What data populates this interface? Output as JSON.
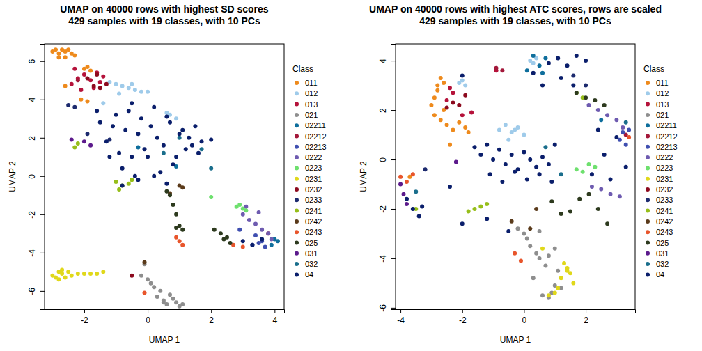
{
  "chart_data": [
    {
      "type": "scatter",
      "title": "UMAP on 40000 rows with highest SD scores",
      "subtitle": "429 samples with 19 classes, with 10 PCs",
      "x_label": "UMAP 1",
      "y_label": "UMAP 2",
      "legend_title": "Class",
      "legend": "right",
      "xlim": [
        -3.25,
        4.3
      ],
      "ylim": [
        -6.95,
        6.9
      ],
      "xticks": [
        -2,
        0,
        2,
        4
      ],
      "yticks": [
        -6,
        -4,
        -2,
        0,
        2,
        4,
        6
      ],
      "series": [
        {
          "name": "011",
          "color": "#EE8A1C",
          "x": [
            -3.0,
            -2.9,
            -2.8,
            -2.7,
            -2.6,
            -2.5,
            -2.4,
            -2.3,
            -2.8,
            -2.6,
            -2.0,
            -1.9,
            -1.8,
            -2.1,
            -1.9,
            -2.6
          ],
          "y": [
            6.5,
            6.6,
            6.4,
            6.6,
            6.5,
            6.6,
            6.4,
            6.3,
            6.2,
            6.2,
            5.6,
            5.7,
            5.5,
            4.0,
            3.9,
            4.7
          ]
        },
        {
          "name": "012",
          "color": "#9FCBEA",
          "x": [
            -1.2,
            -1.0,
            -0.8,
            -0.6,
            -0.4,
            -0.2,
            0.0,
            -0.5,
            -0.9,
            0.6,
            0.7,
            0.9,
            -1.4
          ],
          "y": [
            4.9,
            4.8,
            4.7,
            4.6,
            4.5,
            4.4,
            4.4,
            4.8,
            4.3,
            3.3,
            3.2,
            3.0,
            3.8
          ]
        },
        {
          "name": "013",
          "color": "#B5123A",
          "x": [
            -2.4,
            -2.2,
            -2.0,
            -1.8,
            -1.6,
            -1.4,
            -2.1,
            -1.7,
            -2.3,
            -1.5
          ],
          "y": [
            4.8,
            5.1,
            5.3,
            5.0,
            5.4,
            5.2,
            4.5,
            4.6,
            5.6,
            4.9
          ]
        },
        {
          "name": "021",
          "color": "#8E8E8E",
          "x": [
            -0.2,
            0.0,
            0.2,
            0.3,
            0.5,
            0.6,
            0.8,
            0.9,
            1.0,
            0.4,
            0.1,
            0.7,
            1.1,
            -0.1,
            0.5
          ],
          "y": [
            -5.2,
            -5.4,
            -5.8,
            -6.3,
            -6.5,
            -6.7,
            -6.4,
            -6.6,
            -6.8,
            -6.0,
            -5.6,
            -6.2,
            -6.7,
            -4.6,
            -6.6
          ]
        },
        {
          "name": "02211",
          "color": "#0E6E9C",
          "x": [
            4.0,
            4.1,
            3.9,
            0.9,
            -0.3
          ],
          "y": [
            -3.3,
            -3.4,
            -3.6,
            0.5,
            1.5
          ]
        },
        {
          "name": "02212",
          "color": "#A3183A",
          "x": [
            -2.2,
            3.8
          ],
          "y": [
            5.0,
            -3.0
          ]
        },
        {
          "name": "02213",
          "color": "#3F4FB0",
          "x": [
            3.3,
            3.5,
            3.6,
            3.7,
            3.4,
            2.9
          ],
          "y": [
            -3.6,
            -3.5,
            -3.4,
            -3.7,
            -3.1,
            -2.8
          ]
        },
        {
          "name": "0222",
          "color": "#6E5BB0",
          "x": [
            3.0,
            3.2,
            3.4,
            3.6,
            3.8,
            3.9,
            3.1,
            3.5
          ],
          "y": [
            -2.0,
            -2.3,
            -2.5,
            -2.8,
            -3.0,
            -3.3,
            -1.6,
            -1.9
          ]
        },
        {
          "name": "0223",
          "color": "#6EE06E",
          "x": [
            2.0,
            2.9,
            3.0,
            2.8,
            3.1
          ],
          "y": [
            -1.1,
            -1.5,
            -1.7,
            -1.6,
            -1.8
          ]
        },
        {
          "name": "0231",
          "color": "#E0D81A",
          "x": [
            -3.0,
            -2.9,
            -2.8,
            -2.7,
            -2.6,
            -2.5,
            -2.4,
            -2.2,
            -2.0,
            -1.8,
            -1.6,
            -1.4,
            -2.8,
            -2.7
          ],
          "y": [
            -5.2,
            -5.3,
            -5.0,
            -5.1,
            -5.3,
            -5.0,
            -5.2,
            -5.1,
            -5.1,
            -5.1,
            -5.1,
            -5.0,
            -5.4,
            -4.9
          ]
        },
        {
          "name": "0232",
          "color": "#8C0A1E",
          "x": [
            -1.9,
            -1.7,
            -1.5,
            -1.3,
            -1.6,
            -0.5
          ],
          "y": [
            5.1,
            4.7,
            4.6,
            4.8,
            5.3,
            -5.2
          ]
        },
        {
          "name": "0233",
          "color": "#1C2A6E",
          "x": [
            -2.5,
            -2.3,
            -1.9,
            -1.2
          ],
          "y": [
            3.7,
            3.6,
            2.2,
            1.9
          ]
        },
        {
          "name": "0241",
          "color": "#96BE1A",
          "x": [
            -1.0,
            -0.8,
            -0.6,
            -0.9,
            -0.5,
            -2.3,
            -2.2
          ],
          "y": [
            -0.3,
            -0.5,
            -0.4,
            -0.7,
            -0.2,
            1.5,
            1.7
          ]
        },
        {
          "name": "0242",
          "color": "#5A3A1A",
          "x": [
            1.0,
            0.7,
            1.1,
            -0.1
          ],
          "y": [
            -0.5,
            -0.9,
            -0.6,
            -4.5
          ]
        },
        {
          "name": "0243",
          "color": "#E8552B",
          "x": [
            0.9,
            1.0,
            1.1,
            2.7,
            3.0,
            -0.1
          ],
          "y": [
            -3.2,
            -3.4,
            -3.6,
            -3.6,
            -3.7,
            -6.1
          ]
        },
        {
          "name": "025",
          "color": "#2D3A1E",
          "x": [
            0.6,
            0.7,
            0.8,
            0.9,
            1.0,
            1.1,
            2.1,
            2.3,
            2.5,
            2.6,
            2.4,
            0.9
          ],
          "y": [
            -0.8,
            -1.0,
            -1.5,
            -2.0,
            -2.6,
            -2.8,
            -2.8,
            -3.0,
            -3.2,
            -3.5,
            -3.3,
            -2.7
          ]
        },
        {
          "name": "031",
          "color": "#5C1A8C",
          "x": [
            -2.4,
            -1.8,
            -2.0
          ],
          "y": [
            1.9,
            1.6,
            1.8
          ]
        },
        {
          "name": "032",
          "color": "#1A6E8C",
          "x": [
            0.5,
            1.0,
            1.7,
            2.0
          ],
          "y": [
            1.2,
            2.0,
            1.4,
            0.4
          ]
        },
        {
          "name": "04",
          "color": "#0A1E6B",
          "x": [
            -1.5,
            -1.3,
            -1.1,
            -0.9,
            -0.7,
            -0.5,
            -0.3,
            -0.1,
            0.1,
            0.3,
            0.5,
            0.7,
            0.9,
            1.1,
            1.3,
            1.5,
            1.7,
            -1.2,
            -0.8,
            -0.4,
            0.0,
            0.4,
            0.8,
            1.2,
            1.6,
            -1.0,
            -0.6,
            -0.2,
            0.2,
            0.6,
            1.0,
            1.4,
            -0.3,
            0.2,
            0.6,
            -0.8,
            2.0,
            3.0,
            3.3,
            3.6,
            -1.6,
            -0.5
          ],
          "y": [
            2.8,
            1.8,
            2.6,
            1.2,
            2.4,
            1.0,
            2.2,
            1.4,
            2.6,
            2.0,
            1.6,
            2.8,
            1.0,
            2.4,
            2.0,
            2.6,
            1.8,
            1.0,
            0.4,
            0.0,
            1.0,
            0.2,
            0.6,
            1.4,
            1.2,
            3.2,
            3.4,
            3.0,
            3.6,
            3.1,
            2.2,
            1.6,
            -0.2,
            0.0,
            -0.4,
            -0.5,
            1.9,
            -3.4,
            -3.6,
            -3.3,
            3.4,
            3.8
          ]
        }
      ]
    },
    {
      "type": "scatter",
      "title": "UMAP on 40000 rows with highest ATC scores, rows are scaled",
      "subtitle": "429 samples with 19 classes, with 10 PCs",
      "x_label": "UMAP 1",
      "y_label": "UMAP 2",
      "legend_title": "Class",
      "legend": "right",
      "xlim": [
        -4.16,
        3.6
      ],
      "ylim": [
        -6.06,
        4.68
      ],
      "xticks": [
        -4,
        -2,
        0,
        2
      ],
      "yticks": [
        -6,
        -4,
        -2,
        0,
        2,
        4
      ],
      "series": [
        {
          "name": "011",
          "color": "#EE8A1C",
          "x": [
            -2.7,
            -2.6,
            -2.8,
            -2.9,
            -3.0,
            -2.9,
            -2.7,
            -2.5,
            -2.3,
            -2.1,
            -2.6,
            -2.8,
            -2.4,
            -1.9,
            -1.8,
            -3.7
          ],
          "y": [
            3.3,
            3.1,
            2.8,
            2.5,
            2.2,
            1.8,
            1.6,
            1.4,
            1.2,
            1.5,
            2.0,
            3.0,
            0.6,
            1.3,
            1.1,
            -0.7
          ]
        },
        {
          "name": "012",
          "color": "#9FCBEA",
          "x": [
            -0.8,
            -0.6,
            -0.4,
            -0.2,
            0.0,
            -0.5,
            -0.3,
            0.2,
            0.3,
            0.4,
            -2.1,
            -1.9,
            -2.0
          ],
          "y": [
            1.2,
            1.4,
            1.1,
            1.3,
            1.0,
            0.8,
            1.2,
            4.0,
            3.9,
            4.1,
            3.1,
            3.0,
            3.2
          ]
        },
        {
          "name": "013",
          "color": "#B5123A",
          "x": [
            -2.4,
            -2.3,
            -2.5,
            -2.0,
            -0.9,
            -1.7
          ],
          "y": [
            2.9,
            2.7,
            2.4,
            1.8,
            3.6,
            1.9
          ]
        },
        {
          "name": "021",
          "color": "#8E8E8E",
          "x": [
            0.0,
            0.2,
            0.4,
            0.5,
            0.7,
            0.8,
            1.0,
            1.1,
            1.2,
            0.9,
            0.6,
            0.3,
            0.1,
            0.8,
            1.0,
            -0.2,
            0.5
          ],
          "y": [
            -3.0,
            -3.5,
            -3.8,
            -4.0,
            -4.3,
            -3.9,
            -3.6,
            -4.5,
            -5.2,
            -5.4,
            -5.5,
            -4.8,
            -3.2,
            -5.6,
            -5.1,
            -2.8,
            -2.9
          ]
        },
        {
          "name": "02211",
          "color": "#0E6E9C",
          "x": [
            0.1,
            0.3,
            0.5,
            0.7,
            0.6,
            2.5
          ],
          "y": [
            3.6,
            4.2,
            3.8,
            4.1,
            3.5,
            1.6
          ]
        },
        {
          "name": "02212",
          "color": "#A3183A",
          "x": [
            -0.9,
            -0.7,
            3.3
          ],
          "y": [
            3.7,
            3.6,
            1.0
          ]
        },
        {
          "name": "02213",
          "color": "#3F4FB0",
          "x": [
            3.1,
            3.2,
            3.3,
            3.4
          ],
          "y": [
            0.8,
            1.1,
            0.6,
            1.2
          ]
        },
        {
          "name": "0222",
          "color": "#6E5BB0",
          "x": [
            2.1,
            2.4,
            2.7,
            3.0,
            3.2,
            2.5,
            2.8,
            3.1,
            2.2
          ],
          "y": [
            2.2,
            2.0,
            1.8,
            1.6,
            1.3,
            -1.2,
            -1.4,
            -1.5,
            -1.1
          ]
        },
        {
          "name": "0223",
          "color": "#6EE06E",
          "x": [
            1.7,
            1.9,
            2.1,
            2.3
          ],
          "y": [
            -0.4,
            -0.5,
            -0.2,
            -0.3
          ]
        },
        {
          "name": "0231",
          "color": "#E0D81A",
          "x": [
            1.3,
            1.4,
            1.5,
            1.2,
            1.1,
            1.0,
            0.8,
            1.6,
            1.4,
            0.6
          ],
          "y": [
            -4.2,
            -4.4,
            -4.6,
            -4.8,
            -5.2,
            -5.4,
            -5.5,
            -5.0,
            -4.5,
            -3.6
          ]
        },
        {
          "name": "0232",
          "color": "#8C0A1E",
          "x": [
            -2.5,
            -2.3,
            -2.1,
            -1.9
          ],
          "y": [
            2.1,
            2.3,
            2.2,
            2.6
          ]
        },
        {
          "name": "0233",
          "color": "#1C2A6E",
          "x": [
            1.6,
            2.0,
            -3.2
          ],
          "y": [
            3.4,
            3.0,
            -0.4
          ]
        },
        {
          "name": "0241",
          "color": "#96BE1A",
          "x": [
            -1.8,
            -1.6,
            -1.4,
            -1.2,
            -3.5,
            1.7,
            1.9
          ],
          "y": [
            -2.1,
            -2.0,
            -1.9,
            -1.8,
            -2.0,
            2.7,
            2.5
          ]
        },
        {
          "name": "0242",
          "color": "#5A3A1A",
          "x": [
            0.4,
            -0.4,
            0.2
          ],
          "y": [
            -2.0,
            -2.5,
            -2.8
          ]
        },
        {
          "name": "0243",
          "color": "#E8552B",
          "x": [
            -4.0,
            -3.8,
            -3.6,
            3.4,
            -0.1,
            -0.3
          ],
          "y": [
            -0.7,
            -0.9,
            -0.6,
            0.9,
            -4.1,
            -3.8
          ]
        },
        {
          "name": "025",
          "color": "#2D3A1E",
          "x": [
            0.9,
            1.2,
            1.5,
            1.8,
            2.1,
            2.4,
            2.7,
            1.7,
            2.0,
            2.3,
            2.6
          ],
          "y": [
            -1.7,
            -2.2,
            -2.1,
            -1.6,
            -1.4,
            -2.0,
            -2.6,
            2.7,
            2.5,
            2.4,
            2.2
          ]
        },
        {
          "name": "031",
          "color": "#5C1A8C",
          "x": [
            -4.0,
            -3.9,
            -3.8,
            -2.2
          ],
          "y": [
            -1.0,
            -1.4,
            -1.8,
            -0.1
          ]
        },
        {
          "name": "032",
          "color": "#1A6E8C",
          "x": [
            0.7,
            3.3,
            -3.5,
            1.2
          ],
          "y": [
            0.5,
            1.5,
            -1.3,
            -0.6
          ]
        },
        {
          "name": "04",
          "color": "#0A1E6B",
          "x": [
            -1.6,
            -1.4,
            -1.2,
            -1.0,
            -0.8,
            -0.6,
            -0.4,
            -0.2,
            0.0,
            0.2,
            0.4,
            0.6,
            0.8,
            1.0,
            -1.1,
            -0.7,
            -0.3,
            0.1,
            0.5,
            0.9,
            0.8,
            1.1,
            1.4,
            1.7,
            2.0,
            1.2,
            1.6,
            0.6,
            2.2,
            2.6,
            3.0,
            3.3,
            2.4,
            2.8,
            -3.8,
            -3.6,
            -3.4,
            -3.3,
            -2.4,
            -2.0,
            -1.2,
            -2.0,
            0.3,
            -0.5
          ],
          "y": [
            0.5,
            0.2,
            0.6,
            0.0,
            0.4,
            -0.2,
            0.2,
            -0.4,
            0.3,
            0.0,
            -0.3,
            0.1,
            -0.2,
            0.6,
            -0.6,
            -0.9,
            -0.5,
            -0.8,
            -0.6,
            -0.9,
            3.9,
            4.1,
            3.8,
            4.2,
            4.0,
            3.3,
            3.0,
            3.0,
            -0.6,
            0.2,
            0.9,
            -0.3,
            1.2,
            -0.8,
            -1.6,
            -2.0,
            -2.3,
            -1.9,
            -1.1,
            -2.6,
            -2.4,
            3.4,
            3.5,
            -2.9
          ]
        }
      ]
    }
  ]
}
